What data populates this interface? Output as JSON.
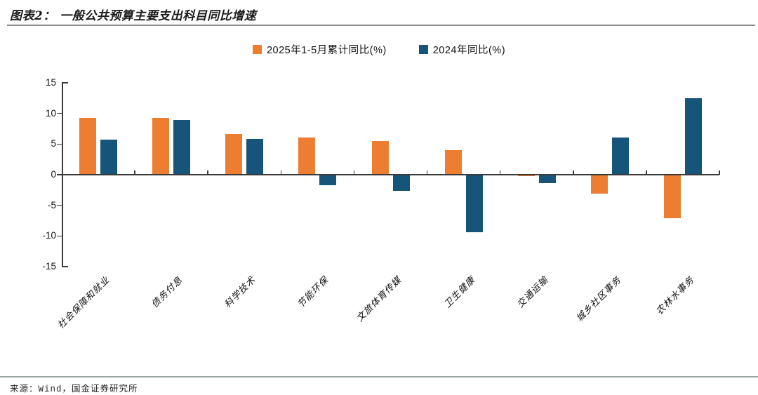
{
  "header": {
    "title": "图表2： 一般公共预算主要支出科目同比增速"
  },
  "footer": {
    "source": "来源：Wind，国金证券研究所"
  },
  "colors": {
    "series_2025": "#ED7D31",
    "series_2024": "#175479",
    "axis": "#3a3a3a",
    "rule_gray": "#9aa2a3"
  },
  "chart_data": {
    "type": "bar",
    "title": "一般公共预算主要支出科目同比增速",
    "categories": [
      "社会保障和就业",
      "债务付息",
      "科学技术",
      "节能环保",
      "文旅体育传媒",
      "卫生健康",
      "交通运输",
      "城乡社区事务",
      "农林水事务"
    ],
    "series": [
      {
        "name": "2025年1-5月累计同比(%)",
        "color": "#ED7D31",
        "values": [
          9.2,
          9.2,
          6.5,
          6.0,
          5.4,
          3.9,
          -0.2,
          -3.0,
          -7.0
        ]
      },
      {
        "name": "2024年同比(%)",
        "color": "#175479",
        "values": [
          5.6,
          8.8,
          5.7,
          -1.6,
          -2.6,
          -9.3,
          -1.3,
          6.0,
          12.4
        ]
      }
    ],
    "xlabel": "",
    "ylabel": "",
    "ylim": [
      -15,
      15
    ],
    "yticks": [
      15,
      10,
      5,
      0,
      -5,
      -10,
      -15
    ],
    "grid": false,
    "legend_position": "top-center"
  }
}
